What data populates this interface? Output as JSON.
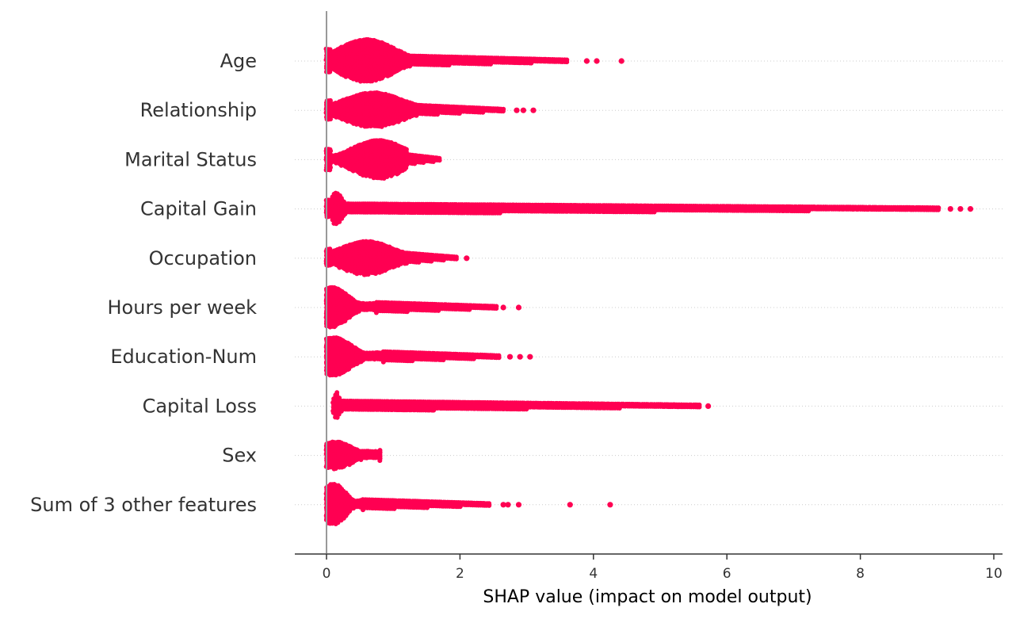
{
  "chart_data": {
    "type": "scatter",
    "subtype": "beeswarm",
    "xlabel": "SHAP value (impact on model output)",
    "xlim": [
      -0.48,
      10.12
    ],
    "xticks": [
      0,
      2,
      4,
      6,
      8,
      10
    ],
    "grid": false,
    "point_color": "#ff0052",
    "zero_line_color": "#999999",
    "features": [
      {
        "name": "Age",
        "dense_min": 0.0,
        "dense_max": 1.25,
        "peak": 0.6,
        "peak_halfwidth": 27,
        "tail_max": 3.6,
        "outliers": [
          3.9,
          4.05,
          4.42
        ]
      },
      {
        "name": "Relationship",
        "dense_min": 0.0,
        "dense_max": 1.35,
        "peak": 0.7,
        "peak_halfwidth": 22,
        "tail_max": 2.65,
        "outliers": [
          2.85,
          2.95,
          3.1
        ]
      },
      {
        "name": "Marital Status",
        "dense_min": 0.0,
        "dense_max": 1.2,
        "peak": 0.78,
        "peak_halfwidth": 24,
        "tail_max": 1.72,
        "outliers": []
      },
      {
        "name": "Capital Gain",
        "dense_min": 0.0,
        "dense_max": 0.28,
        "peak": 0.15,
        "peak_halfwidth": 20,
        "tail_max": 9.2,
        "outliers": [
          9.35,
          9.5,
          9.65
        ]
      },
      {
        "name": "Occupation",
        "dense_min": 0.0,
        "dense_max": 1.2,
        "peak": 0.6,
        "peak_halfwidth": 21,
        "tail_max": 1.95,
        "outliers": [
          2.1
        ]
      },
      {
        "name": "Hours per week",
        "dense_min": 0.0,
        "dense_max": 0.75,
        "peak": 0.08,
        "peak_halfwidth": 25,
        "tail_max": 2.55,
        "outliers": [
          2.65,
          2.88
        ]
      },
      {
        "name": "Education-Num",
        "dense_min": 0.0,
        "dense_max": 0.85,
        "peak": 0.1,
        "peak_halfwidth": 24,
        "tail_max": 2.6,
        "outliers": [
          2.75,
          2.9,
          3.05
        ]
      },
      {
        "name": "Capital Loss",
        "dense_min": 0.1,
        "dense_max": 0.22,
        "peak": 0.15,
        "peak_halfwidth": 17,
        "tail_max": 5.6,
        "outliers": [
          5.72
        ]
      },
      {
        "name": "Sex",
        "dense_min": 0.0,
        "dense_max": 0.8,
        "peak": 0.13,
        "peak_halfwidth": 17,
        "tail_max": 0.8,
        "outliers": []
      },
      {
        "name": "Sum of 3 other features",
        "dense_min": 0.0,
        "dense_max": 0.55,
        "peak": 0.1,
        "peak_halfwidth": 26,
        "tail_max": 2.45,
        "outliers": [
          2.65,
          2.72,
          2.88,
          3.65,
          4.25
        ]
      }
    ]
  }
}
